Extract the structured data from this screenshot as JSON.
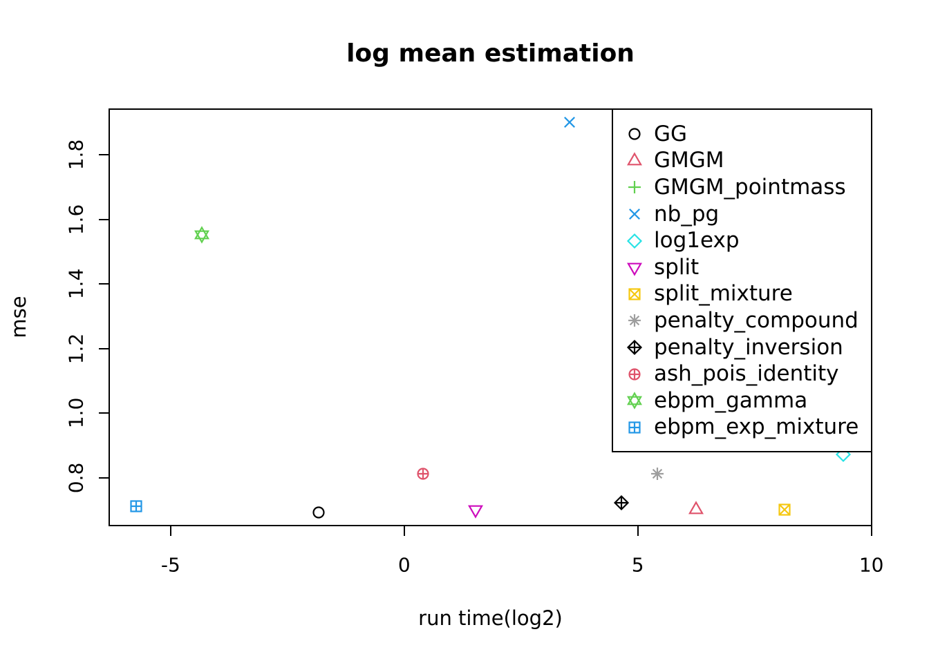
{
  "figure": {
    "title": "log mean estimation",
    "x_axis_label": "run time(log2)",
    "y_axis_label": "mse"
  },
  "chart_data": {
    "type": "scatter",
    "title": "log mean estimation",
    "xlabel": "run time(log2)",
    "ylabel": "mse",
    "xlim": [
      -6.33,
      10.02
    ],
    "ylim": [
      0.65,
      1.944
    ],
    "x_ticks": [
      -5,
      0,
      5,
      10
    ],
    "y_ticks": [
      0.8,
      1.0,
      1.2,
      1.4,
      1.6,
      1.8
    ],
    "grid": false,
    "legend_position": "top-right-inside",
    "marker_style": "open-r-pch-symbols",
    "series": [
      {
        "name": "GG",
        "marker": "open-circle",
        "color": "#000000",
        "x": -1.82,
        "y": 0.69
      },
      {
        "name": "GMGM",
        "marker": "open-triangle-up",
        "color": "#DF536B",
        "x": 6.26,
        "y": 0.7
      },
      {
        "name": "GMGM_pointmass",
        "marker": "plus",
        "color": "#61D04F",
        "x": null,
        "y": null,
        "occluded_by_legend": true
      },
      {
        "name": "nb_pg",
        "marker": "x-cross",
        "color": "#2297E6",
        "x": 3.55,
        "y": 1.9
      },
      {
        "name": "log1exp",
        "marker": "open-diamond",
        "color": "#28E2E5",
        "x": 9.42,
        "y": 0.87
      },
      {
        "name": "split",
        "marker": "open-triangle-down",
        "color": "#CD0BBC",
        "x": 1.54,
        "y": 0.7
      },
      {
        "name": "split_mixture",
        "marker": "square-with-x",
        "color": "#F5C710",
        "x": 8.15,
        "y": 0.7
      },
      {
        "name": "penalty_compound",
        "marker": "asterisk",
        "color": "#9E9E9E",
        "x": 5.44,
        "y": 0.81
      },
      {
        "name": "penalty_inversion",
        "marker": "diamond-with-plus",
        "color": "#000000",
        "x": 4.66,
        "y": 0.72
      },
      {
        "name": "ash_pois_identity",
        "marker": "circle-with-plus",
        "color": "#DF536B",
        "x": 0.41,
        "y": 0.81
      },
      {
        "name": "ebpm_gamma",
        "marker": "star-of-david",
        "color": "#61D04F",
        "x": -4.32,
        "y": 1.55
      },
      {
        "name": "ebpm_exp_mixture",
        "marker": "square-with-plus",
        "color": "#2297E6",
        "x": -5.72,
        "y": 0.71
      }
    ]
  }
}
